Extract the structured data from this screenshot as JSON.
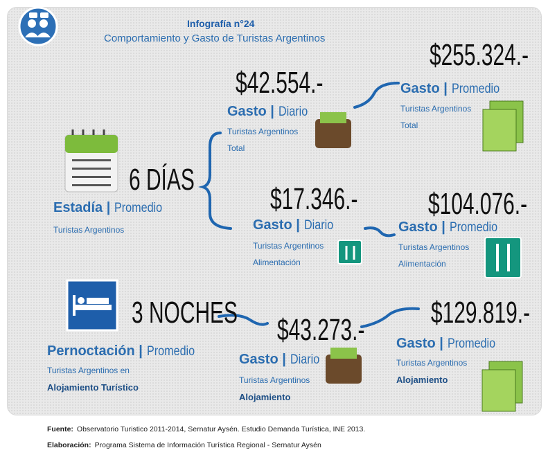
{
  "header": {
    "title": "Infografía n°24",
    "subtitle": "Comportamiento y Gasto de Turistas Argentinos"
  },
  "blocks": [
    {
      "value": "6 DÍAS",
      "label": "Estadía |",
      "qualifier": "Promedio",
      "lines": [
        "Turistas Argentinos"
      ]
    },
    {
      "value": "$42.554.-",
      "label": "Gasto |",
      "qualifier": "Diario",
      "lines": [
        "Turistas Argentinos",
        "Total"
      ]
    },
    {
      "value": "$255.324.-",
      "label": "Gasto |",
      "qualifier": "Promedio",
      "lines": [
        "Turistas Argentinos",
        "Total"
      ]
    },
    {
      "value": "$17.346.-",
      "label": "Gasto |",
      "qualifier": "Diario",
      "lines": [
        "Turistas Argentinos",
        "Alimentación"
      ]
    },
    {
      "value": "$104.076.-",
      "label": "Gasto |",
      "qualifier": "Promedio",
      "lines": [
        "Turistas Argentinos",
        "Alimentación"
      ]
    },
    {
      "value": "3 NOCHES",
      "label": "Pernoctación |",
      "qualifier": "Promedio",
      "lines": [
        "Turistas Argentinos en",
        "Alojamiento Turístico"
      ]
    },
    {
      "value": "$43.273.-",
      "label": "Gasto |",
      "qualifier": "Diario",
      "lines": [
        "Turistas Argentinos",
        "Alojamiento"
      ]
    },
    {
      "value": "$129.819.-",
      "label": "Gasto |",
      "qualifier": "Promedio",
      "lines": [
        "Turistas Argentinos",
        "Alojamiento"
      ]
    }
  ],
  "footer": {
    "source_label": "Fuente:",
    "source": "Observatorio Turistico 2011-2014, Sernatur Aysén. Estudio Demanda Turística, INE 2013.",
    "credit_label": "Elaboración:",
    "credit": "Programa Sistema de Información Turística Regional - Sernatur Aysén"
  }
}
